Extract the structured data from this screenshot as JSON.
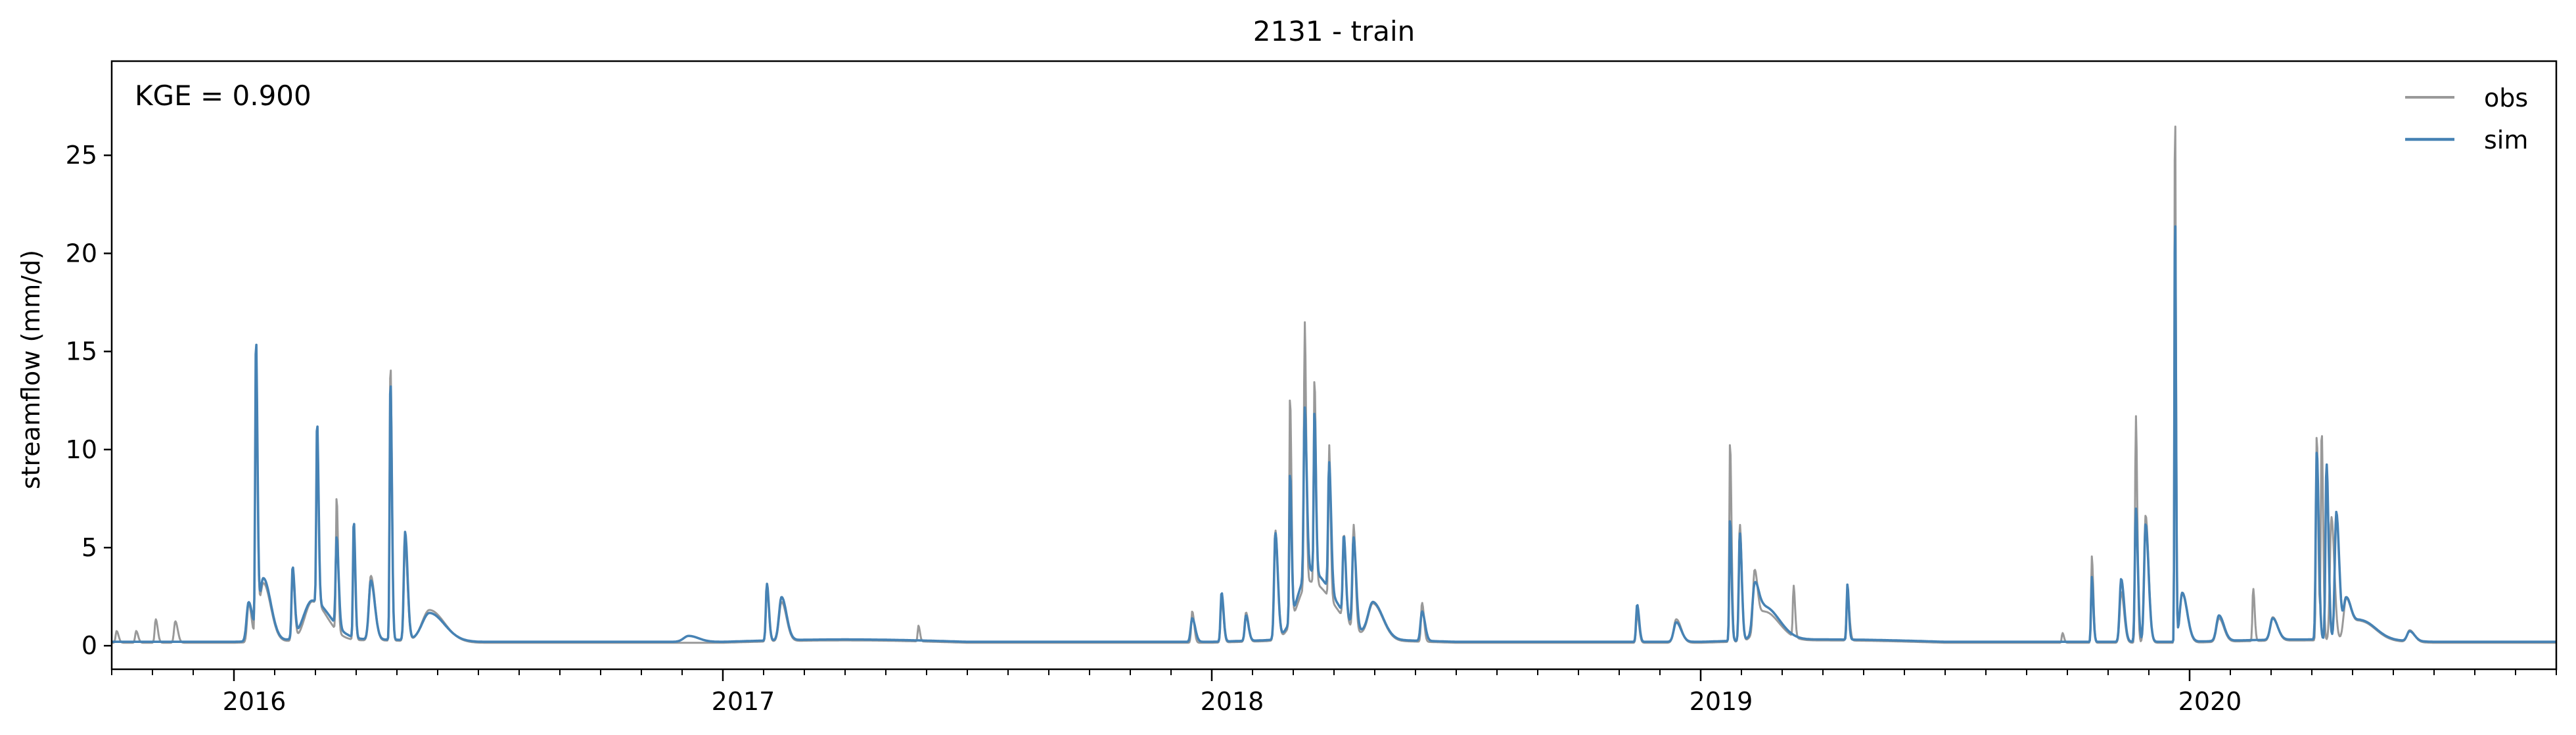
{
  "chart_data": {
    "type": "line",
    "title": "2131 - train",
    "xlabel": "",
    "ylabel": "streamflow (mm/d)",
    "annotation": "KGE = 0.900",
    "legend_position": "top-right",
    "x_range": [
      2015.75,
      2020.75
    ],
    "ylim": [
      -1.2,
      29.8
    ],
    "y_ticks": [
      0,
      5,
      10,
      15,
      20,
      25
    ],
    "x_year_ticks": [
      {
        "value": 2016,
        "label": "2016"
      },
      {
        "value": 2017,
        "label": "2017"
      },
      {
        "value": 2018,
        "label": "2018"
      },
      {
        "value": 2019,
        "label": "2019"
      },
      {
        "value": 2020,
        "label": "2020"
      }
    ],
    "baseline": {
      "obs": 0.15,
      "sim": 0.2
    },
    "series": [
      {
        "name": "obs",
        "color": "#999999",
        "peaks": [
          [
            2015.76,
            0.6,
            0.004
          ],
          [
            2015.8,
            0.6,
            0.004
          ],
          [
            2015.84,
            1.2,
            0.004
          ],
          [
            2015.88,
            1.1,
            0.005
          ],
          [
            2016.03,
            2.0,
            0.006
          ],
          [
            2016.045,
            14.8,
            0.003
          ],
          [
            2016.06,
            3.0,
            0.015
          ],
          [
            2016.12,
            3.5,
            0.004
          ],
          [
            2016.17,
            9.3,
            0.003
          ],
          [
            2016.16,
            2.0,
            0.03
          ],
          [
            2016.21,
            6.8,
            0.003
          ],
          [
            2016.245,
            5.8,
            0.003
          ],
          [
            2016.28,
            3.3,
            0.008
          ],
          [
            2016.32,
            14.3,
            0.003
          ],
          [
            2016.35,
            5.0,
            0.005
          ],
          [
            2016.4,
            1.6,
            0.03
          ],
          [
            2017.09,
            2.8,
            0.004
          ],
          [
            2017.12,
            2.0,
            0.01
          ],
          [
            2017.4,
            0.8,
            0.003
          ],
          [
            2017.96,
            1.6,
            0.004
          ],
          [
            2018.02,
            2.2,
            0.004
          ],
          [
            2018.07,
            1.5,
            0.005
          ],
          [
            2018.13,
            5.6,
            0.005
          ],
          [
            2018.16,
            11.6,
            0.003
          ],
          [
            2018.19,
            13.5,
            0.003
          ],
          [
            2018.21,
            10.4,
            0.003
          ],
          [
            2018.24,
            7.8,
            0.003
          ],
          [
            2018.2,
            3.0,
            0.05
          ],
          [
            2018.27,
            4.3,
            0.004
          ],
          [
            2018.29,
            5.3,
            0.004
          ],
          [
            2018.33,
            1.8,
            0.02
          ],
          [
            2018.43,
            2.0,
            0.004
          ],
          [
            2018.87,
            1.5,
            0.004
          ],
          [
            2018.95,
            1.2,
            0.01
          ],
          [
            2019.06,
            10.2,
            0.003
          ],
          [
            2019.08,
            6.0,
            0.004
          ],
          [
            2019.11,
            3.0,
            0.006
          ],
          [
            2019.13,
            1.5,
            0.03
          ],
          [
            2019.19,
            2.6,
            0.003
          ],
          [
            2019.3,
            2.4,
            0.004
          ],
          [
            2019.74,
            0.5,
            0.003
          ],
          [
            2019.8,
            4.4,
            0.003
          ],
          [
            2019.86,
            2.6,
            0.006
          ],
          [
            2019.89,
            11.6,
            0.003
          ],
          [
            2019.91,
            6.5,
            0.006
          ],
          [
            2019.97,
            28.6,
            0.002
          ],
          [
            2019.985,
            2.5,
            0.01
          ],
          [
            2020.06,
            1.2,
            0.01
          ],
          [
            2020.13,
            2.7,
            0.003
          ],
          [
            2020.17,
            1.2,
            0.01
          ],
          [
            2020.26,
            10.5,
            0.003
          ],
          [
            2020.27,
            10.8,
            0.003
          ],
          [
            2020.29,
            6.3,
            0.006
          ],
          [
            2020.32,
            2.0,
            0.01
          ],
          [
            2020.35,
            1.0,
            0.03
          ],
          [
            2020.45,
            0.6,
            0.01
          ]
        ]
      },
      {
        "name": "sim",
        "color": "#4682b4",
        "peaks": [
          [
            2016.03,
            2.0,
            0.008
          ],
          [
            2016.045,
            14.8,
            0.003
          ],
          [
            2016.06,
            3.2,
            0.015
          ],
          [
            2016.12,
            3.6,
            0.004
          ],
          [
            2016.17,
            9.3,
            0.003
          ],
          [
            2016.16,
            2.0,
            0.035
          ],
          [
            2016.21,
            4.5,
            0.004
          ],
          [
            2016.245,
            6.0,
            0.003
          ],
          [
            2016.28,
            3.0,
            0.008
          ],
          [
            2016.32,
            13.4,
            0.003
          ],
          [
            2016.35,
            5.5,
            0.005
          ],
          [
            2016.4,
            1.4,
            0.03
          ],
          [
            2016.93,
            0.3,
            0.02
          ],
          [
            2017.09,
            2.9,
            0.004
          ],
          [
            2017.12,
            2.2,
            0.01
          ],
          [
            2017.96,
            1.2,
            0.006
          ],
          [
            2018.02,
            2.5,
            0.004
          ],
          [
            2018.07,
            1.3,
            0.005
          ],
          [
            2018.13,
            5.4,
            0.005
          ],
          [
            2018.16,
            7.5,
            0.003
          ],
          [
            2018.19,
            8.6,
            0.004
          ],
          [
            2018.21,
            8.2,
            0.003
          ],
          [
            2018.24,
            6.5,
            0.004
          ],
          [
            2018.2,
            3.5,
            0.05
          ],
          [
            2018.27,
            4.0,
            0.004
          ],
          [
            2018.29,
            4.5,
            0.005
          ],
          [
            2018.33,
            1.8,
            0.02
          ],
          [
            2018.43,
            1.5,
            0.006
          ],
          [
            2018.87,
            1.9,
            0.004
          ],
          [
            2018.95,
            1.0,
            0.01
          ],
          [
            2019.06,
            6.2,
            0.003
          ],
          [
            2019.08,
            5.5,
            0.004
          ],
          [
            2019.11,
            2.2,
            0.008
          ],
          [
            2019.13,
            1.7,
            0.03
          ],
          [
            2019.3,
            2.8,
            0.003
          ],
          [
            2019.8,
            3.3,
            0.003
          ],
          [
            2019.86,
            3.2,
            0.006
          ],
          [
            2019.89,
            6.8,
            0.004
          ],
          [
            2019.91,
            6.0,
            0.006
          ],
          [
            2019.97,
            23.0,
            0.002
          ],
          [
            2019.985,
            2.5,
            0.01
          ],
          [
            2020.06,
            1.3,
            0.01
          ],
          [
            2020.17,
            1.1,
            0.01
          ],
          [
            2020.26,
            9.6,
            0.004
          ],
          [
            2020.28,
            9.0,
            0.004
          ],
          [
            2020.3,
            6.5,
            0.006
          ],
          [
            2020.32,
            2.0,
            0.01
          ],
          [
            2020.35,
            1.0,
            0.03
          ],
          [
            2020.45,
            0.5,
            0.01
          ]
        ]
      }
    ]
  }
}
